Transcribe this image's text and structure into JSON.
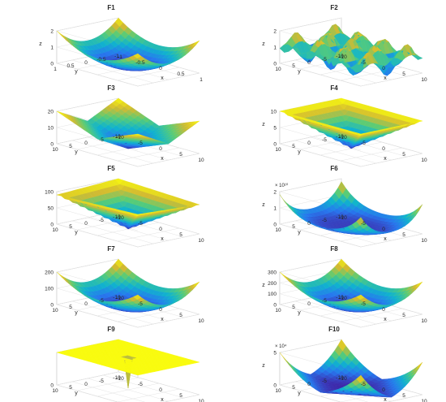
{
  "figure": {
    "grid": true,
    "colormap": "parula",
    "panels": [
      {
        "title": "F1",
        "zmax": 2,
        "surface": "f1",
        "zticks": [
          "0",
          "1",
          "2"
        ],
        "zlabel": "z",
        "yticks": [
          "1",
          "0.5",
          "0",
          "-0.5",
          "-1"
        ],
        "xticks": [
          "-1",
          "-0.5",
          "0",
          "0.5",
          "1"
        ],
        "ylabel": "y",
        "xlabel": "x",
        "zexp": ""
      },
      {
        "title": "F2",
        "zmax": 2,
        "surface": "f2",
        "zticks": [
          "0",
          "1",
          "2"
        ],
        "zlabel": "z",
        "yticks": [
          "10",
          "5",
          "0",
          "-5",
          "-10"
        ],
        "xticks": [
          "-10",
          "-5",
          "0",
          "5",
          "10"
        ],
        "ylabel": "y",
        "xlabel": "x",
        "zexp": ""
      },
      {
        "title": "F3",
        "zmax": 20,
        "surface": "f3",
        "zticks": [
          "0",
          "10",
          "20"
        ],
        "zlabel": "",
        "yticks": [
          "10",
          "5",
          "0",
          "-5",
          "-10"
        ],
        "xticks": [
          "-10",
          "-5",
          "0",
          "5",
          "10"
        ],
        "ylabel": "y",
        "xlabel": "x",
        "zexp": ""
      },
      {
        "title": "F4",
        "zmax": 10,
        "surface": "f4",
        "zticks": [
          "0",
          "5",
          "10"
        ],
        "zlabel": "z",
        "yticks": [
          "10",
          "5",
          "0",
          "-5",
          "-10"
        ],
        "xticks": [
          "-10",
          "-5",
          "0",
          "5",
          "10"
        ],
        "ylabel": "y",
        "xlabel": "x",
        "zexp": ""
      },
      {
        "title": "F5",
        "zmax": 100,
        "surface": "f5",
        "zticks": [
          "0",
          "50",
          "100"
        ],
        "zlabel": "",
        "yticks": [
          "10",
          "5",
          "0",
          "-5",
          "-10"
        ],
        "xticks": [
          "-10",
          "-5",
          "0",
          "5",
          "10"
        ],
        "ylabel": "y",
        "xlabel": "x",
        "zexp": ""
      },
      {
        "title": "F6",
        "zmax": 2,
        "surface": "f6",
        "zticks": [
          "0",
          "1",
          "2"
        ],
        "zlabel": "z",
        "yticks": [
          "10",
          "5",
          "0",
          "-5",
          "-10"
        ],
        "xticks": [
          "-10",
          "-5",
          "0",
          "5",
          "10"
        ],
        "ylabel": "y",
        "xlabel": "x",
        "zexp": "× 10¹⁰"
      },
      {
        "title": "F7",
        "zmax": 200,
        "surface": "f7",
        "zticks": [
          "0",
          "100",
          "200"
        ],
        "zlabel": "",
        "yticks": [
          "10",
          "5",
          "0",
          "-5",
          "-10"
        ],
        "xticks": [
          "-10",
          "-5",
          "0",
          "5",
          "10"
        ],
        "ylabel": "y",
        "xlabel": "x",
        "zexp": ""
      },
      {
        "title": "F8",
        "zmax": 300,
        "surface": "f8",
        "zticks": [
          "0",
          "100",
          "200",
          "300"
        ],
        "zlabel": "z",
        "yticks": [
          "10",
          "5",
          "0",
          "-5",
          "-10"
        ],
        "xticks": [
          "-10",
          "-5",
          "0",
          "5",
          "10"
        ],
        "ylabel": "y",
        "xlabel": "x",
        "zexp": ""
      },
      {
        "title": "F9",
        "zmax": 1,
        "surface": "f9",
        "zticks": [
          "0"
        ],
        "zlabel": "",
        "yticks": [
          "10",
          "5",
          "0",
          "-5",
          "-10"
        ],
        "xticks": [
          "-10",
          "-5",
          "0",
          "5",
          "10"
        ],
        "ylabel": "y",
        "xlabel": "x",
        "zexp": ""
      },
      {
        "title": "F10",
        "zmax": 5,
        "surface": "f10",
        "zticks": [
          "0",
          "5"
        ],
        "zlabel": "z",
        "yticks": [
          "10",
          "5",
          "0",
          "-5",
          "-10"
        ],
        "xticks": [
          "-10",
          "-5",
          "0",
          "5",
          "10"
        ],
        "ylabel": "y",
        "xlabel": "x",
        "zexp": "× 10⁴"
      }
    ]
  },
  "chart_data": [
    {
      "type": "heatmap",
      "title": "F1",
      "xlabel": "x",
      "ylabel": "y",
      "zlabel": "z",
      "xlim": [
        -1,
        1
      ],
      "ylim": [
        -1,
        1
      ],
      "zlim": [
        0,
        2
      ]
    },
    {
      "type": "heatmap",
      "title": "F2",
      "xlabel": "x",
      "ylabel": "y",
      "zlabel": "z",
      "xlim": [
        -10,
        10
      ],
      "ylim": [
        -10,
        10
      ],
      "zlim": [
        0,
        2
      ]
    },
    {
      "type": "heatmap",
      "title": "F3",
      "xlabel": "x",
      "ylabel": "y",
      "xlim": [
        -10,
        10
      ],
      "ylim": [
        -10,
        10
      ],
      "zlim": [
        0,
        20
      ]
    },
    {
      "type": "heatmap",
      "title": "F4",
      "xlabel": "x",
      "ylabel": "y",
      "zlabel": "z",
      "xlim": [
        -10,
        10
      ],
      "ylim": [
        -10,
        10
      ],
      "zlim": [
        0,
        10
      ]
    },
    {
      "type": "heatmap",
      "title": "F5",
      "xlabel": "x",
      "ylabel": "y",
      "xlim": [
        -10,
        10
      ],
      "ylim": [
        -10,
        10
      ],
      "zlim": [
        0,
        100
      ]
    },
    {
      "type": "heatmap",
      "title": "F6",
      "xlabel": "x",
      "ylabel": "y",
      "zlabel": "z",
      "xlim": [
        -10,
        10
      ],
      "ylim": [
        -10,
        10
      ],
      "zlim": [
        0,
        2
      ],
      "zscale": "× 10¹⁰"
    },
    {
      "type": "heatmap",
      "title": "F7",
      "xlabel": "x",
      "ylabel": "y",
      "xlim": [
        -10,
        10
      ],
      "ylim": [
        -10,
        10
      ],
      "zlim": [
        0,
        200
      ]
    },
    {
      "type": "heatmap",
      "title": "F8",
      "xlabel": "x",
      "ylabel": "y",
      "zlabel": "z",
      "xlim": [
        -10,
        10
      ],
      "ylim": [
        -10,
        10
      ],
      "zlim": [
        0,
        300
      ]
    },
    {
      "type": "heatmap",
      "title": "F9",
      "xlabel": "x",
      "ylabel": "y",
      "xlim": [
        -10,
        10
      ],
      "ylim": [
        -10,
        10
      ],
      "zlim": [
        0,
        1
      ]
    },
    {
      "type": "heatmap",
      "title": "F10",
      "xlabel": "x",
      "ylabel": "y",
      "zlabel": "z",
      "xlim": [
        -10,
        10
      ],
      "ylim": [
        -10,
        10
      ],
      "zlim": [
        0,
        5
      ],
      "zscale": "× 10⁴"
    }
  ]
}
